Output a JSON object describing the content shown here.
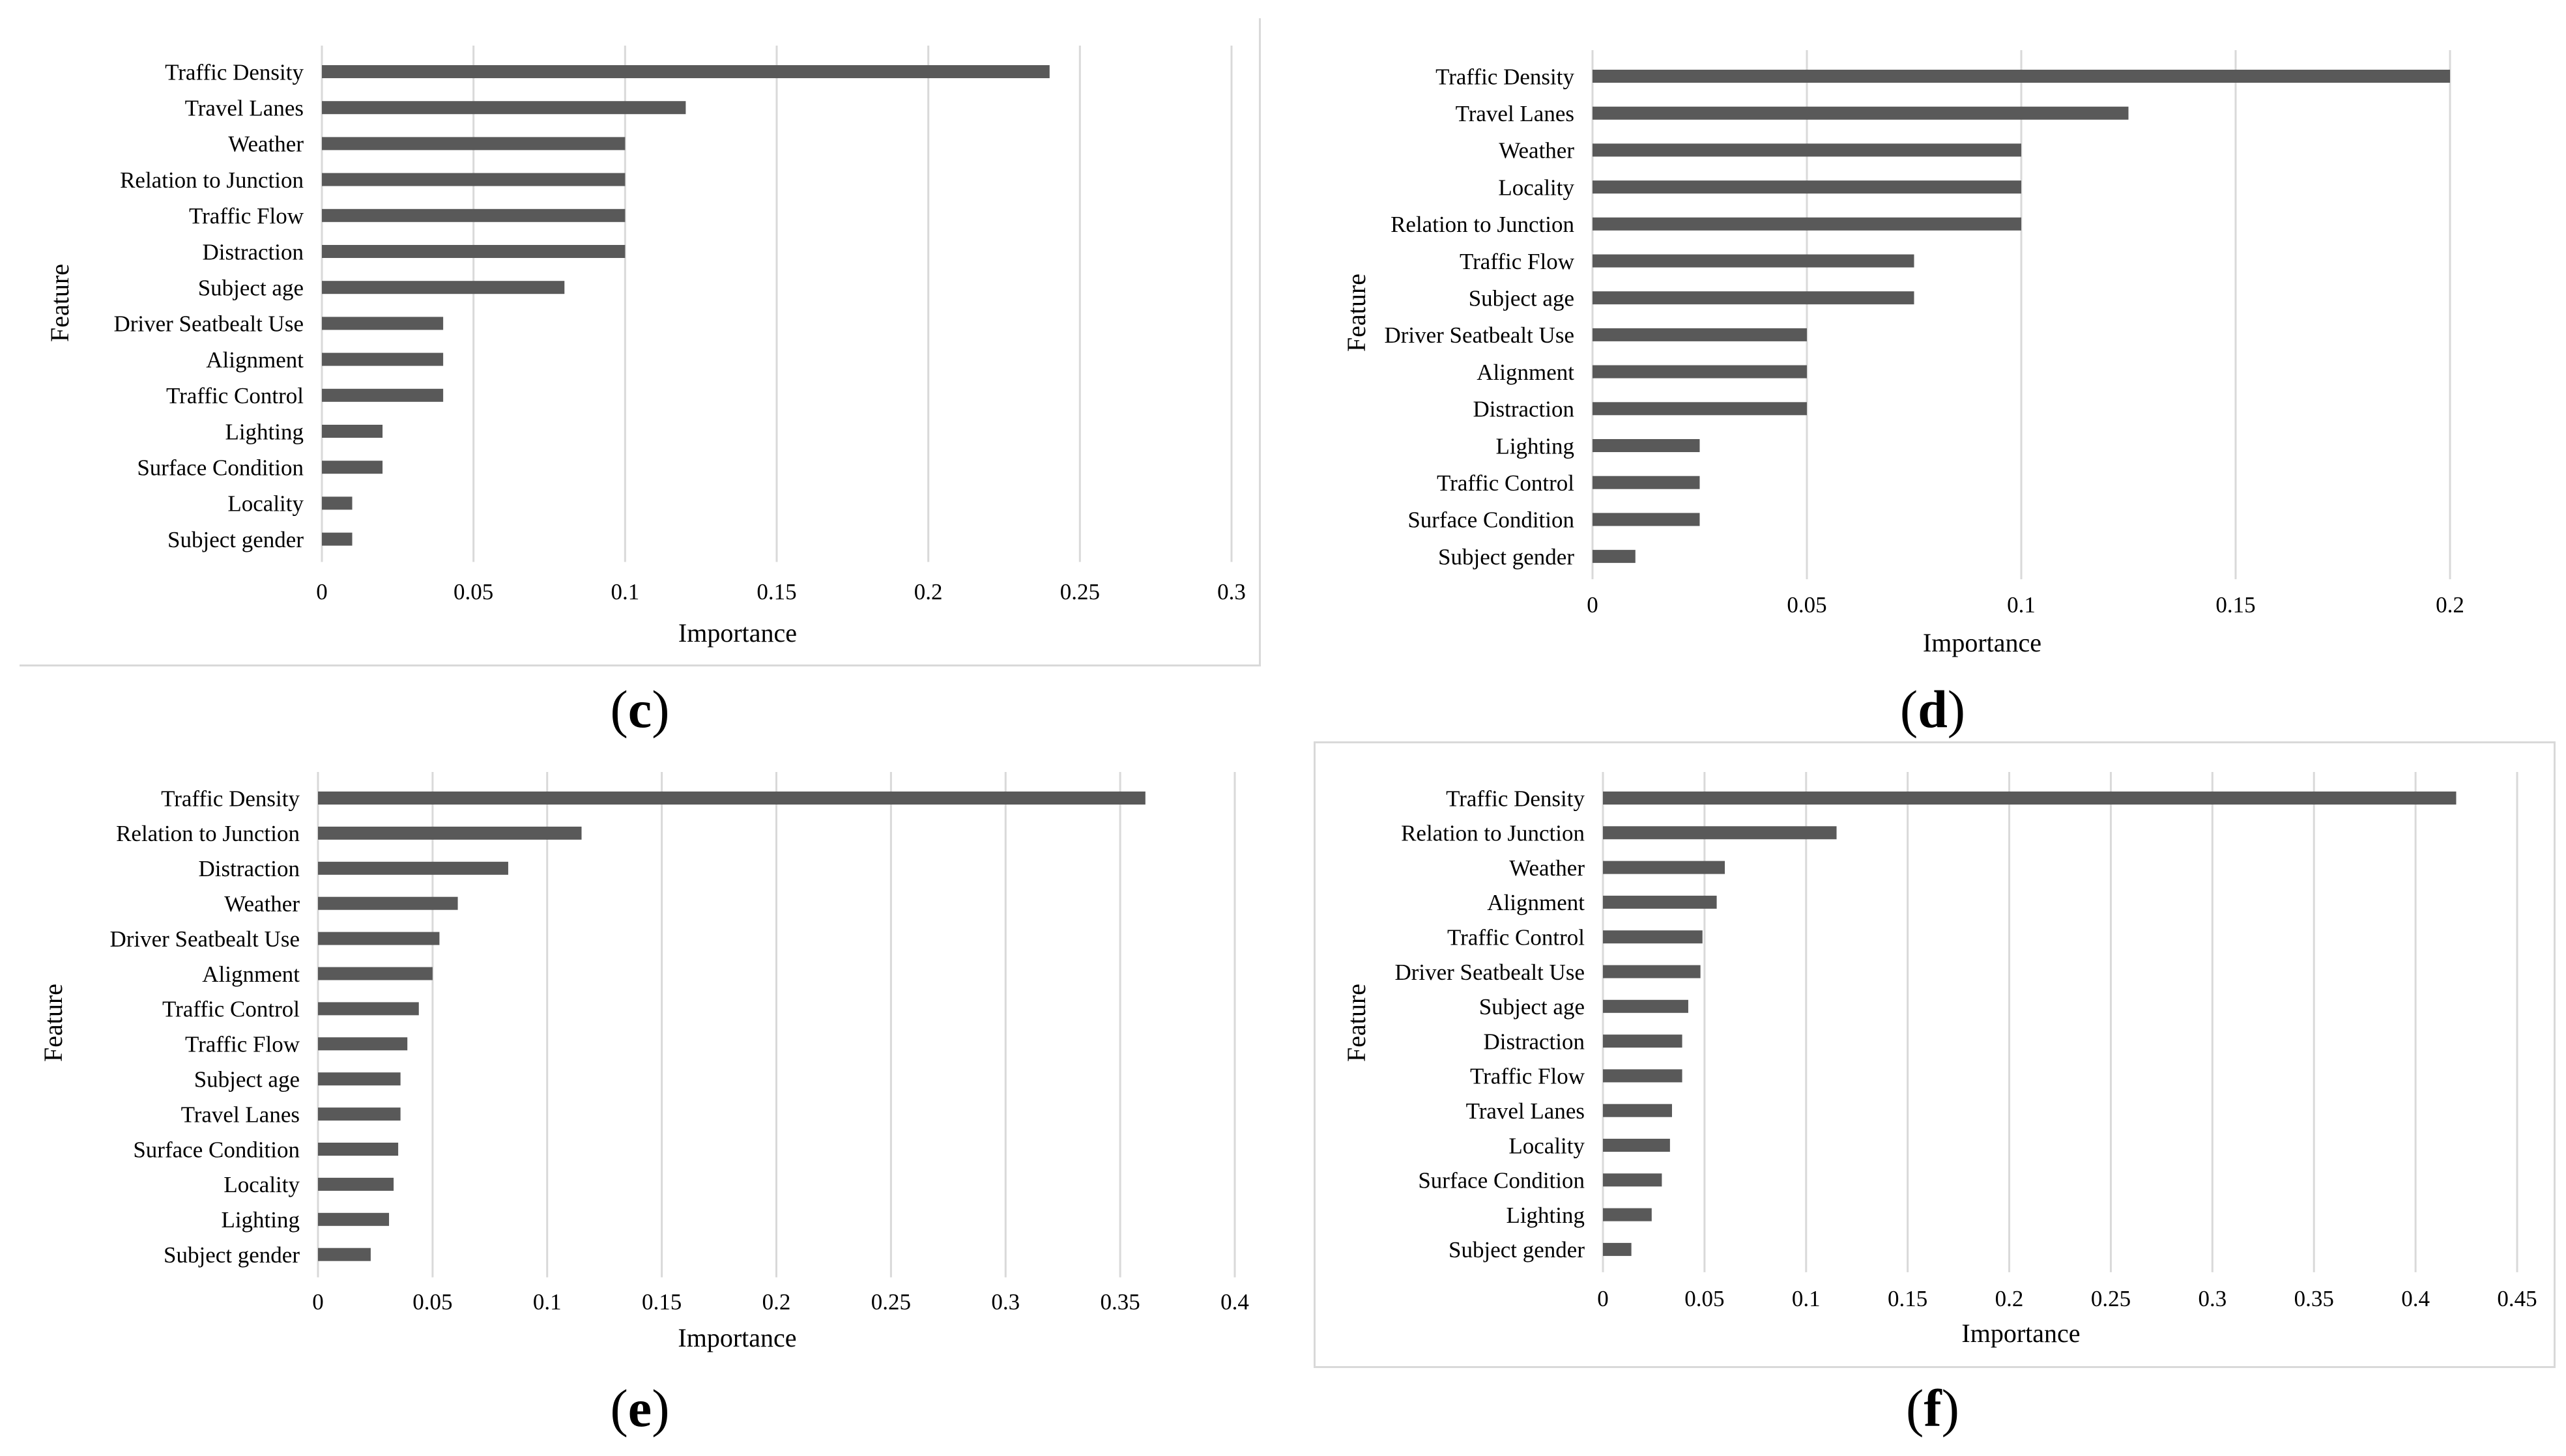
{
  "colors": {
    "bar": "#595959",
    "grid": "#d9d9d9",
    "text": "#000000"
  },
  "chart_data": [
    {
      "id": "c",
      "type": "bar",
      "orientation": "horizontal",
      "caption": "c",
      "xlabel": "Importance",
      "ylabel": "Feature",
      "xlim": [
        0,
        0.3
      ],
      "xticks": [
        0,
        0.05,
        0.1,
        0.15,
        0.2,
        0.25,
        0.3
      ],
      "tick_labels": [
        "0",
        "0.05",
        "0.1",
        "0.15",
        "0.2",
        "0.25",
        "0.3"
      ],
      "categories": [
        "Traffic Density",
        "Travel Lanes",
        "Weather",
        "Relation to Junction",
        "Traffic Flow",
        "Distraction",
        "Subject age",
        "Driver Seatbealt Use",
        "Alignment",
        "Traffic Control",
        "Lighting",
        "Surface Condition",
        "Locality",
        "Subject gender"
      ],
      "values": [
        0.24,
        0.12,
        0.1,
        0.1,
        0.1,
        0.1,
        0.08,
        0.04,
        0.04,
        0.04,
        0.02,
        0.02,
        0.01,
        0.01
      ]
    },
    {
      "id": "d",
      "type": "bar",
      "orientation": "horizontal",
      "caption": "d",
      "xlabel": "Importance",
      "ylabel": "Feature",
      "xlim": [
        0,
        0.2
      ],
      "xticks": [
        0,
        0.05,
        0.1,
        0.15,
        0.2
      ],
      "tick_labels": [
        "0",
        "0.05",
        "0.1",
        "0.15",
        "0.2"
      ],
      "categories": [
        "Traffic Density",
        "Travel Lanes",
        "Weather",
        "Locality",
        "Relation to Junction",
        "Traffic Flow",
        "Subject age",
        "Driver Seatbealt Use",
        "Alignment",
        "Distraction",
        "Lighting",
        "Traffic Control",
        "Surface Condition",
        "Subject gender"
      ],
      "values": [
        0.2,
        0.125,
        0.1,
        0.1,
        0.1,
        0.075,
        0.075,
        0.05,
        0.05,
        0.05,
        0.025,
        0.025,
        0.025,
        0.01
      ]
    },
    {
      "id": "e",
      "type": "bar",
      "orientation": "horizontal",
      "caption": "e",
      "xlabel": "Importance",
      "ylabel": "Feature",
      "xlim": [
        0,
        0.4
      ],
      "xticks": [
        0,
        0.05,
        0.1,
        0.15,
        0.2,
        0.25,
        0.3,
        0.35,
        0.4
      ],
      "tick_labels": [
        "0",
        "0.05",
        "0.1",
        "0.15",
        "0.2",
        "0.25",
        "0.3",
        "0.35",
        "0.4"
      ],
      "categories": [
        "Traffic Density",
        "Relation to Junction",
        "Distraction",
        "Weather",
        "Driver Seatbealt Use",
        "Alignment",
        "Traffic Control",
        "Traffic Flow",
        "Subject age",
        "Travel Lanes",
        "Surface Condition",
        "Locality",
        "Lighting",
        "Subject gender"
      ],
      "values": [
        0.361,
        0.115,
        0.083,
        0.061,
        0.053,
        0.05,
        0.044,
        0.039,
        0.036,
        0.036,
        0.035,
        0.033,
        0.031,
        0.023
      ]
    },
    {
      "id": "f",
      "type": "bar",
      "orientation": "horizontal",
      "caption": "f",
      "xlabel": "Importance",
      "ylabel": "Feature",
      "xlim": [
        0,
        0.45
      ],
      "xticks": [
        0,
        0.05,
        0.1,
        0.15,
        0.2,
        0.25,
        0.3,
        0.35,
        0.4,
        0.45
      ],
      "tick_labels": [
        "0",
        "0.05",
        "0.1",
        "0.15",
        "0.2",
        "0.25",
        "0.3",
        "0.35",
        "0.4",
        "0.45"
      ],
      "categories": [
        "Traffic Density",
        "Relation to Junction",
        "Weather",
        "Alignment",
        "Traffic Control",
        "Driver Seatbealt Use",
        "Subject age",
        "Distraction",
        "Traffic Flow",
        "Travel Lanes",
        "Locality",
        "Surface Condition",
        "Lighting",
        "Subject gender"
      ],
      "values": [
        0.42,
        0.115,
        0.06,
        0.056,
        0.049,
        0.048,
        0.042,
        0.039,
        0.039,
        0.034,
        0.033,
        0.029,
        0.024,
        0.014
      ]
    }
  ]
}
